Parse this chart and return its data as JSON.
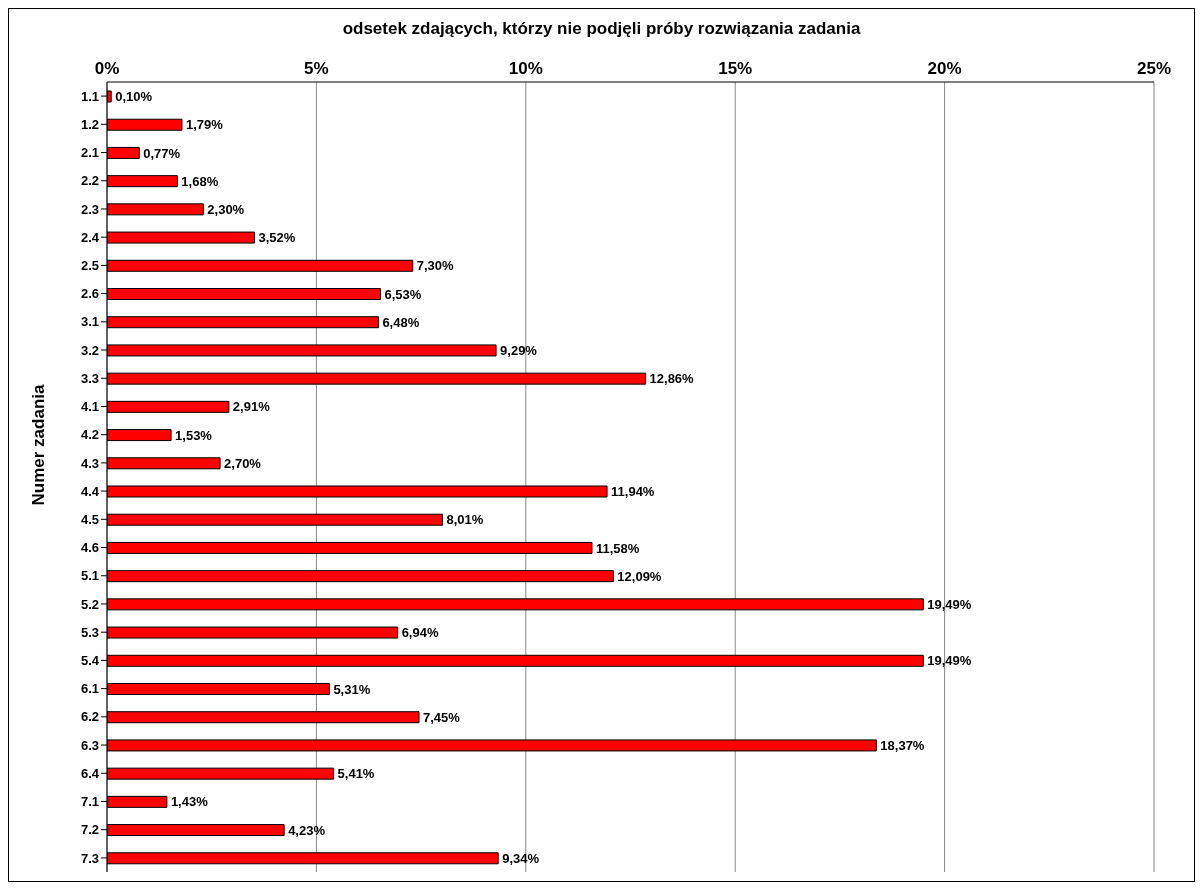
{
  "chart_data": {
    "type": "bar",
    "orientation": "horizontal",
    "title": "odsetek zdających, którzy nie podjęli próby rozwiązania zadania",
    "ylabel": "Numer zadania",
    "categories": [
      "1.1",
      "1.2",
      "2.1",
      "2.2",
      "2.3",
      "2.4",
      "2.5",
      "2.6",
      "3.1",
      "3.2",
      "3.3",
      "4.1",
      "4.2",
      "4.3",
      "4.4",
      "4.5",
      "4.6",
      "5.1",
      "5.2",
      "5.3",
      "5.4",
      "6.1",
      "6.2",
      "6.3",
      "6.4",
      "7.1",
      "7.2",
      "7.3"
    ],
    "values": [
      0.1,
      1.79,
      0.77,
      1.68,
      2.3,
      3.52,
      7.3,
      6.53,
      6.48,
      9.29,
      12.86,
      2.91,
      1.53,
      2.7,
      11.94,
      8.01,
      11.58,
      12.09,
      19.49,
      6.94,
      19.49,
      5.31,
      7.45,
      18.37,
      5.41,
      1.43,
      4.23,
      9.34
    ],
    "value_labels": [
      "0,10%",
      "1,79%",
      "0,77%",
      "1,68%",
      "2,30%",
      "3,52%",
      "7,30%",
      "6,53%",
      "6,48%",
      "9,29%",
      "12,86%",
      "2,91%",
      "1,53%",
      "2,70%",
      "11,94%",
      "8,01%",
      "11,58%",
      "12,09%",
      "19,49%",
      "6,94%",
      "19,49%",
      "5,31%",
      "7,45%",
      "18,37%",
      "5,41%",
      "1,43%",
      "4,23%",
      "9,34%"
    ],
    "color": "#ff0000",
    "xlim": [
      0,
      25
    ],
    "xticks": [
      {
        "value": 0,
        "label": "0%"
      },
      {
        "value": 5,
        "label": "5%"
      },
      {
        "value": 10,
        "label": "10%"
      },
      {
        "value": 15,
        "label": "15%"
      },
      {
        "value": 20,
        "label": "20%"
      },
      {
        "value": 25,
        "label": "25%"
      }
    ],
    "grid": "x",
    "legend": false
  }
}
